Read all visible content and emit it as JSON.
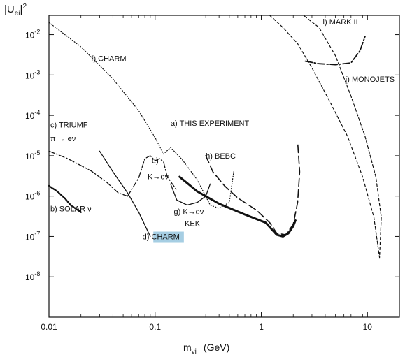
{
  "chart_data": {
    "type": "line",
    "title": "",
    "xlabel_main": "m",
    "xlabel_sub": "νi",
    "xlabel_unit": "(GeV)",
    "ylabel_main": "|U",
    "ylabel_sub": "ei",
    "ylabel_close": "|",
    "ylabel_sup": "2",
    "xscale": "log",
    "yscale": "log",
    "xlim": [
      0.01,
      20
    ],
    "ylim": [
      1e-09,
      0.03
    ],
    "grid": false,
    "x_ticks": [
      {
        "value": 0.01,
        "label": "0.01"
      },
      {
        "value": 0.1,
        "label": "0.1"
      },
      {
        "value": 1,
        "label": "1"
      },
      {
        "value": 10,
        "label": "10"
      }
    ],
    "y_ticks": [
      {
        "value": 0.01,
        "label": "10-2"
      },
      {
        "value": 0.001,
        "label": "10-3"
      },
      {
        "value": 0.0001,
        "label": "10-4"
      },
      {
        "value": 1e-05,
        "label": "10-5"
      },
      {
        "value": 1e-06,
        "label": "10-6"
      },
      {
        "value": 1e-07,
        "label": "10-7"
      },
      {
        "value": 1e-08,
        "label": "10-8"
      }
    ],
    "series": [
      {
        "name": "a) THIS EXPERIMENT",
        "style": "thick",
        "x": [
          0.17,
          0.25,
          0.4,
          0.7,
          1.1,
          1.4,
          1.6,
          1.8,
          2.0,
          2.1
        ],
        "y": [
          3e-06,
          1.3e-06,
          6.5e-07,
          3.5e-07,
          2.2e-07,
          1.1e-07,
          1e-07,
          1.2e-07,
          1.8e-07,
          2.5e-07
        ]
      },
      {
        "name": "b) SOLAR ν",
        "style": "dotted-heavy",
        "x": [
          0.01,
          0.012,
          0.014,
          0.016,
          0.02
        ],
        "y": [
          1.8e-06,
          1.3e-06,
          9e-07,
          6e-07,
          4e-07
        ]
      },
      {
        "name": "c) TRIUMF π → eν",
        "style": "dashdot",
        "x": [
          0.01,
          0.015,
          0.025,
          0.035,
          0.045,
          0.055
        ],
        "y": [
          1.3e-05,
          8.5e-06,
          4.2e-06,
          2.2e-06,
          1.2e-06,
          1e-06
        ]
      },
      {
        "name": "d) CHARM",
        "style": "solid",
        "x": [
          0.03,
          0.04,
          0.055,
          0.07,
          0.09
        ],
        "y": [
          1.3e-05,
          4e-06,
          1.2e-06,
          4e-07,
          1e-07
        ]
      },
      {
        "name": "e) K→eν",
        "style": "dashdot",
        "x": [
          0.055,
          0.07,
          0.08,
          0.09,
          0.1,
          0.11,
          0.12,
          0.13,
          0.16
        ],
        "y": [
          1e-06,
          2.8e-06,
          8.5e-06,
          1e-05,
          7.5e-06,
          8.5e-06,
          7e-06,
          3e-06,
          1.4e-06
        ]
      },
      {
        "name": "f) CHARM",
        "style": "dotted",
        "x": [
          0.01,
          0.02,
          0.04,
          0.07,
          0.1,
          0.12,
          0.14,
          0.18,
          0.25,
          0.33,
          0.4,
          0.5,
          0.55
        ],
        "y": [
          0.02,
          0.005,
          0.0008,
          0.00013,
          2.8e-05,
          1.1e-05,
          1.6e-05,
          8e-06,
          2.5e-06,
          6e-07,
          5e-07,
          7e-07,
          4e-06
        ]
      },
      {
        "name": "g) K→eν KEK",
        "style": "solid",
        "x": [
          0.14,
          0.16,
          0.2,
          0.25,
          0.3,
          0.33
        ],
        "y": [
          2e-06,
          8e-07,
          6e-07,
          7e-07,
          1e-06,
          2e-06
        ]
      },
      {
        "name": "h) BEBC",
        "style": "dashed-long",
        "x": [
          0.3,
          0.35,
          0.45,
          0.6,
          0.9,
          1.2,
          1.4,
          1.7,
          2.0,
          2.2,
          2.3,
          2.2
        ],
        "y": [
          1e-05,
          4e-06,
          1.8e-06,
          9e-07,
          4.5e-07,
          2.2e-07,
          1.2e-07,
          1.1e-07,
          2e-07,
          7e-07,
          4e-06,
          2.2e-05
        ]
      },
      {
        "name": "i) MARK II",
        "style": "dashed",
        "x": [
          1.2,
          1.6,
          2.2,
          3.0,
          4.5,
          6.5,
          9,
          11.5,
          13,
          13.5,
          12,
          9.5,
          7,
          5,
          3.5,
          2.5
        ],
        "y": [
          0.03,
          0.015,
          0.006,
          0.0015,
          0.0002,
          3e-05,
          3e-06,
          3e-07,
          3e-08,
          3e-07,
          3e-06,
          3e-05,
          0.0003,
          0.003,
          0.015,
          0.03
        ]
      },
      {
        "name": "j) MONOJETS",
        "style": "dashdot-heavy",
        "x": [
          2.6,
          3.5,
          5,
          7,
          8.5,
          9.5
        ],
        "y": [
          0.0022,
          0.0019,
          0.0018,
          0.002,
          0.004,
          0.009
        ]
      }
    ],
    "annotations": [
      {
        "id": "a",
        "text": "a) THIS EXPERIMENT",
        "x": 0.14,
        "y": 5.5e-05
      },
      {
        "id": "b",
        "text": "b) SOLAR ν",
        "x": 0.0103,
        "y": 4.2e-07
      },
      {
        "id": "c1",
        "text": "c) TRIUMF",
        "x": 0.0103,
        "y": 5e-05
      },
      {
        "id": "c2",
        "text": "π → eν",
        "x": 0.0103,
        "y": 2.3e-05
      },
      {
        "id": "d",
        "text": "d) CHARM",
        "x": 0.076,
        "y": 8.5e-08
      },
      {
        "id": "e1",
        "text": "e)",
        "x": 0.093,
        "y": 6.5e-06
      },
      {
        "id": "e2",
        "text": "K→eν",
        "x": 0.085,
        "y": 2.6e-06
      },
      {
        "id": "f",
        "text": "f) CHARM",
        "x": 0.025,
        "y": 0.0022
      },
      {
        "id": "g1",
        "text": "g) K→eν",
        "x": 0.15,
        "y": 3.6e-07
      },
      {
        "id": "g2",
        "text": "KEK",
        "x": 0.19,
        "y": 1.8e-07
      },
      {
        "id": "h",
        "text": "h) BEBC",
        "x": 0.3,
        "y": 8.5e-06
      },
      {
        "id": "i",
        "text": "i) MARK II",
        "x": 3.8,
        "y": 0.018
      },
      {
        "id": "j",
        "text": "j) MONOJETS",
        "x": 6.2,
        "y": 0.00068
      }
    ],
    "highlight": {
      "annotation": "d",
      "color": "#a6cee3"
    }
  }
}
